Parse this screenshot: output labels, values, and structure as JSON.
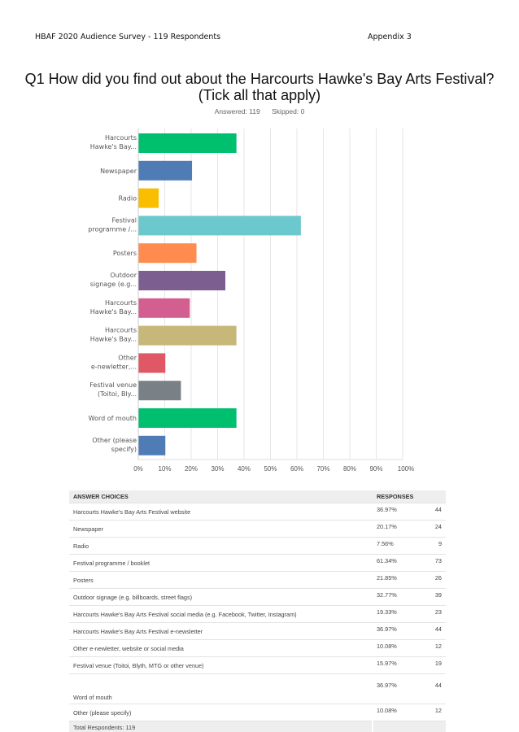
{
  "header": {
    "left": "HBAF 2020 Audience Survey  - 119 Respondents",
    "right": "Appendix 3"
  },
  "question": {
    "line1": "Q1 How did you find out about the Harcourts Hawke's Bay Arts Festival?",
    "line2": "(Tick all that apply)"
  },
  "answered": "Answered: 119",
  "skipped": "Skipped: 0",
  "chart_data": {
    "type": "bar",
    "orientation": "horizontal",
    "categories": [
      [
        "Harcourts",
        "Hawke's Bay..."
      ],
      [
        "Newspaper"
      ],
      [
        "Radio"
      ],
      [
        "Festival",
        "programme /..."
      ],
      [
        "Posters"
      ],
      [
        "Outdoor",
        "signage (e.g..."
      ],
      [
        "Harcourts",
        "Hawke's Bay..."
      ],
      [
        "Harcourts",
        "Hawke's Bay..."
      ],
      [
        "Other",
        "e-newletter,..."
      ],
      [
        "Festival venue",
        "(Toitoi, Bly..."
      ],
      [
        "Word of mouth"
      ],
      [
        "Other (please",
        "specify)"
      ]
    ],
    "values": [
      36.97,
      20.17,
      7.56,
      61.34,
      21.85,
      32.77,
      19.33,
      36.97,
      10.08,
      15.97,
      36.97,
      10.08
    ],
    "colors": [
      "#00bf6f",
      "#507cb6",
      "#f9be00",
      "#6bc8cd",
      "#ff8b4f",
      "#7d5e90",
      "#d25f90",
      "#c7b879",
      "#e05766",
      "#798187",
      "#00bf6f",
      "#507cb6"
    ],
    "xticks": [
      "0%",
      "10%",
      "20%",
      "30%",
      "40%",
      "50%",
      "60%",
      "70%",
      "80%",
      "90%",
      "100%"
    ],
    "xlim": [
      0,
      100
    ],
    "grid": true
  },
  "table": {
    "headers": [
      "ANSWER CHOICES",
      "RESPONSES"
    ],
    "rows": [
      [
        "Harcourts Hawke's Bay Arts Festival website",
        "36.97%",
        "44"
      ],
      [
        "Newspaper",
        "20.17%",
        "24"
      ],
      [
        "Radio",
        "7.56%",
        "9"
      ],
      [
        "Festival programme / booklet",
        "61.34%",
        "73"
      ],
      [
        "Posters",
        "21.85%",
        "26"
      ],
      [
        "Outdoor signage (e.g. billboards, street flags)",
        "32.77%",
        "39"
      ],
      [
        "Harcourts Hawke's Bay Arts Festival social media (e.g. Facebook, Twitter, Instagram)",
        "19.33%",
        "23"
      ],
      [
        "Harcourts Hawke's Bay Arts Festival e-newsletter",
        "36.97%",
        "44"
      ],
      [
        "Other e-newletter, website or social media",
        "10.08%",
        "12"
      ],
      [
        "Festival venue (Toitoi, Blyth, MTG or other venue)",
        "15.97%",
        "19"
      ],
      [
        "Word of mouth",
        "36.97%",
        "44"
      ],
      [
        "Other (please specify)",
        "10.08%",
        "12"
      ]
    ],
    "total": "Total Respondents: 119"
  }
}
